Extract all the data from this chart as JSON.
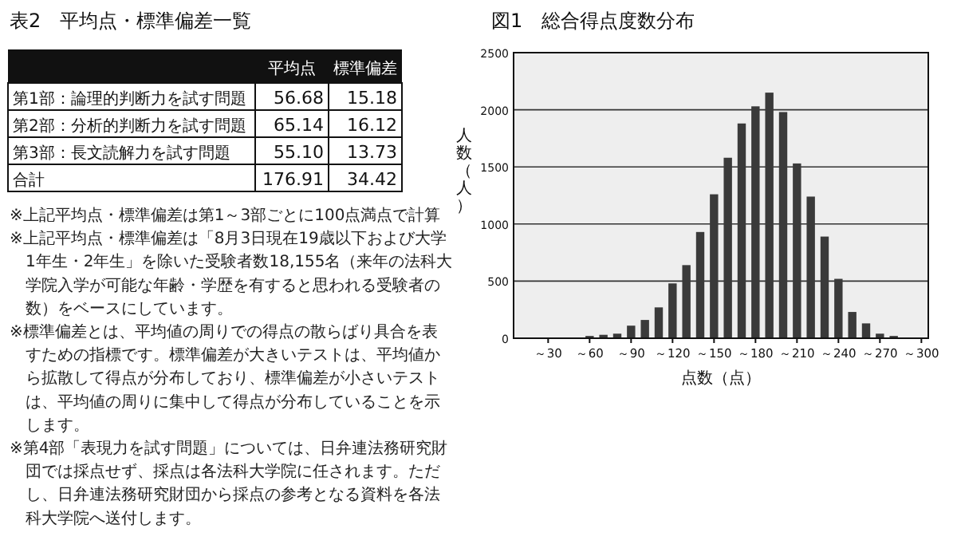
{
  "chart_data": [
    {
      "type": "other",
      "title": "表2　平均点・標準偏差一覧",
      "categories": [
        "第1部：論理的判断力を試す問題",
        "第2部：分析的判断力を試す問題",
        "第3部：長文読解力を試す問題",
        "合計"
      ],
      "series": [
        {
          "name": "平均点",
          "values": [
            56.68,
            65.14,
            55.1,
            176.91
          ],
          "value_labels": [
            "56.68",
            "65.14",
            "55.10",
            "176.91"
          ]
        },
        {
          "name": "標準偏差",
          "values": [
            15.18,
            16.12,
            13.73,
            34.42
          ],
          "value_labels": [
            "15.18",
            "16.12",
            "13.73",
            "34.42"
          ]
        }
      ],
      "annotations": [
        "※上記平均点・標準偏差は第1～3部ごとに100点満点で計算",
        "※上記平均点・標準偏差は「8月3日現在19歳以下および大学1年生・2年生」を除いた受験者数18,155名（来年の法科大学院入学が可能な年齢・学歴を有すると思われる受験者の数）をベースにしています。",
        "※標準偏差とは、平均値の周りでの得点の散らばり具合を表すための指標です。標準偏差が大きいテストは、平均値から拡散して得点が分布しており、標準偏差が小さいテストは、平均値の周りに集中して得点が分布していることを示します。",
        "※第4部「表現力を試す問題」については、日弁連法務研究財団では採点せず、採点は各法科大学院に任されます。ただし、日弁連法務研究財団から採点の参考となる資料を各法科大学院へ送付します。"
      ]
    },
    {
      "type": "bar",
      "title": "図1　総合得点度数分布",
      "xlabel": "点数（点）",
      "ylabel": "人数（人）",
      "color": "#3a3a3a",
      "categories": [
        null,
        null,
        "～30",
        null,
        null,
        "～60",
        null,
        null,
        "～90",
        null,
        null,
        "～120",
        null,
        null,
        "～150",
        null,
        null,
        "～180",
        null,
        null,
        "～210",
        null,
        null,
        "～240",
        null,
        null,
        "～270",
        null,
        null,
        "～300"
      ],
      "values": [
        0,
        0,
        null,
        null,
        null,
        20,
        30,
        40,
        110,
        160,
        270,
        480,
        640,
        930,
        1260,
        1580,
        1880,
        2030,
        2150,
        1980,
        1530,
        1240,
        890,
        520,
        230,
        130,
        40,
        20,
        null,
        0
      ],
      "ylim": [
        0,
        2500
      ],
      "yticks": [
        0,
        500,
        1000,
        1500,
        2000,
        2500
      ],
      "grid": "y"
    }
  ]
}
